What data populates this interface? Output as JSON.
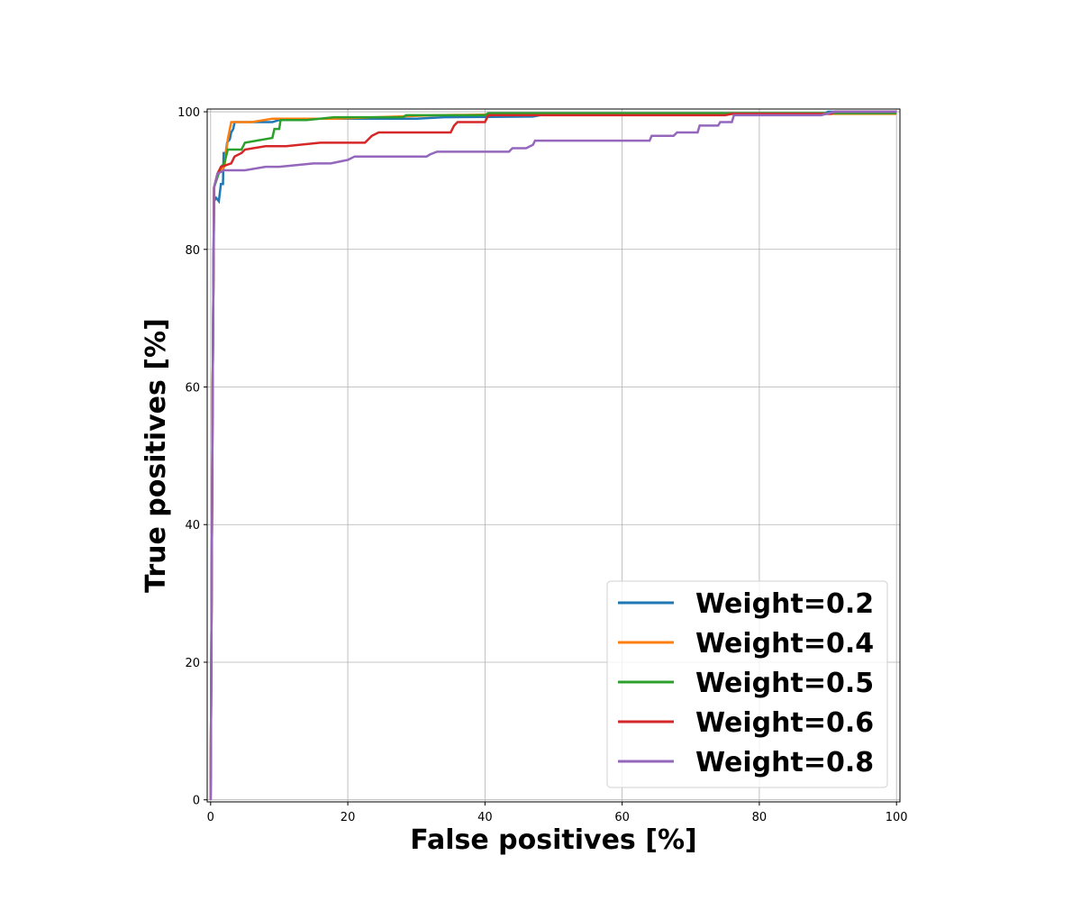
{
  "chart_data": {
    "type": "line",
    "xlabel": "False positives [%]",
    "ylabel": "True positives [%]",
    "xlim": [
      -0.5,
      100.5
    ],
    "ylim": [
      -0.3,
      100.4
    ],
    "xticks": [
      0,
      20,
      40,
      60,
      80,
      100
    ],
    "yticks": [
      0,
      20,
      40,
      60,
      80,
      100
    ],
    "grid": true,
    "legend_position": "lower-right",
    "series": [
      {
        "name": "Weight=0.2",
        "color": "#1f77b4",
        "points": [
          [
            0,
            0
          ],
          [
            0.3,
            60
          ],
          [
            0.5,
            87
          ],
          [
            0.8,
            87.5
          ],
          [
            1.2,
            87
          ],
          [
            1.5,
            89.5
          ],
          [
            1.8,
            89.5
          ],
          [
            1.9,
            94
          ],
          [
            2.2,
            94
          ],
          [
            2.4,
            95.5
          ],
          [
            2.8,
            96
          ],
          [
            3,
            97
          ],
          [
            3.3,
            97.5
          ],
          [
            3.5,
            98.5
          ],
          [
            5,
            98.5
          ],
          [
            9,
            98.5
          ],
          [
            10,
            98.8
          ],
          [
            13,
            98.8
          ],
          [
            16,
            99
          ],
          [
            30,
            99
          ],
          [
            34,
            99.2
          ],
          [
            47,
            99.3
          ],
          [
            49,
            99.7
          ],
          [
            60,
            99.7
          ],
          [
            89.5,
            99.7
          ],
          [
            90,
            100
          ],
          [
            100,
            100
          ]
        ]
      },
      {
        "name": "Weight=0.4",
        "color": "#ff7f0e",
        "points": [
          [
            0,
            0
          ],
          [
            0.3,
            60
          ],
          [
            0.5,
            89
          ],
          [
            1,
            91
          ],
          [
            2,
            92
          ],
          [
            2.5,
            96
          ],
          [
            2.9,
            98
          ],
          [
            3,
            98.5
          ],
          [
            6,
            98.5
          ],
          [
            9,
            99
          ],
          [
            18,
            99
          ],
          [
            24,
            99.2
          ],
          [
            33,
            99.5
          ],
          [
            48,
            99.7
          ],
          [
            100,
            99.7
          ]
        ]
      },
      {
        "name": "Weight=0.5",
        "color": "#2ca02c",
        "points": [
          [
            0,
            0
          ],
          [
            0.3,
            60
          ],
          [
            0.5,
            89
          ],
          [
            1,
            90.5
          ],
          [
            1.5,
            92
          ],
          [
            2,
            92.5
          ],
          [
            2.5,
            94.5
          ],
          [
            4.5,
            94.5
          ],
          [
            5,
            95.5
          ],
          [
            9,
            96.2
          ],
          [
            9.3,
            97.5
          ],
          [
            10,
            97.5
          ],
          [
            10.2,
            98.8
          ],
          [
            14,
            98.8
          ],
          [
            18,
            99.2
          ],
          [
            28,
            99.2
          ],
          [
            28.5,
            99.5
          ],
          [
            40,
            99.5
          ],
          [
            40.5,
            99.8
          ],
          [
            100,
            99.8
          ]
        ]
      },
      {
        "name": "Weight=0.6",
        "color": "#d62728",
        "points": [
          [
            0,
            0
          ],
          [
            0.3,
            60
          ],
          [
            0.5,
            89
          ],
          [
            1,
            91
          ],
          [
            1.5,
            92
          ],
          [
            3,
            92.5
          ],
          [
            3.5,
            93.5
          ],
          [
            4.5,
            94
          ],
          [
            5,
            94.5
          ],
          [
            8,
            95
          ],
          [
            11,
            95
          ],
          [
            16,
            95.5
          ],
          [
            22.5,
            95.5
          ],
          [
            23,
            96
          ],
          [
            23.5,
            96.5
          ],
          [
            24.5,
            97
          ],
          [
            35,
            97
          ],
          [
            35.5,
            98
          ],
          [
            36,
            98.5
          ],
          [
            40,
            98.5
          ],
          [
            40.5,
            99.5
          ],
          [
            75,
            99.5
          ],
          [
            76,
            99.7
          ],
          [
            90.5,
            99.7
          ],
          [
            91,
            100
          ],
          [
            100,
            100
          ]
        ]
      },
      {
        "name": "Weight=0.8",
        "color": "#9467bd",
        "points": [
          [
            0,
            0
          ],
          [
            0.3,
            60
          ],
          [
            0.5,
            89
          ],
          [
            1,
            91
          ],
          [
            2,
            91.5
          ],
          [
            5,
            91.5
          ],
          [
            8,
            92
          ],
          [
            10,
            92
          ],
          [
            15,
            92.5
          ],
          [
            17.5,
            92.5
          ],
          [
            20,
            93
          ],
          [
            21,
            93.5
          ],
          [
            31.5,
            93.5
          ],
          [
            32,
            93.8
          ],
          [
            33,
            94.2
          ],
          [
            43.5,
            94.2
          ],
          [
            44,
            94.7
          ],
          [
            46,
            94.7
          ],
          [
            47,
            95.2
          ],
          [
            47.3,
            95.8
          ],
          [
            64,
            95.8
          ],
          [
            64.3,
            96.5
          ],
          [
            67.5,
            96.5
          ],
          [
            68,
            97
          ],
          [
            71,
            97
          ],
          [
            71.3,
            98
          ],
          [
            74,
            98
          ],
          [
            74.3,
            98.5
          ],
          [
            76,
            98.5
          ],
          [
            76.3,
            99.5
          ],
          [
            89,
            99.5
          ],
          [
            91,
            100
          ],
          [
            100,
            100
          ]
        ]
      }
    ]
  }
}
